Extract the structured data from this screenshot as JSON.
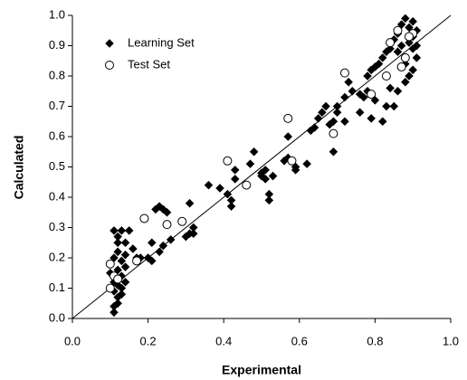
{
  "chart_data": {
    "type": "scatter",
    "xlabel": "Experimental",
    "ylabel": "Calculated",
    "xlim": [
      0,
      1
    ],
    "ylim": [
      0,
      1
    ],
    "xticks": [
      {
        "value": 0,
        "label": "0.0"
      },
      {
        "value": 0.2,
        "label": "0.2"
      },
      {
        "value": 0.4,
        "label": "0.4"
      },
      {
        "value": 0.6,
        "label": "0.6"
      },
      {
        "value": 0.8,
        "label": "0.8"
      },
      {
        "value": 1,
        "label": "1.0"
      }
    ],
    "yticks": [
      {
        "value": 0,
        "label": "0.0"
      },
      {
        "value": 0.1,
        "label": "0.1"
      },
      {
        "value": 0.2,
        "label": "0.2"
      },
      {
        "value": 0.3,
        "label": "0.3"
      },
      {
        "value": 0.4,
        "label": "0.4"
      },
      {
        "value": 0.5,
        "label": "0.5"
      },
      {
        "value": 0.6,
        "label": "0.6"
      },
      {
        "value": 0.7,
        "label": "0.7"
      },
      {
        "value": 0.8,
        "label": "0.8"
      },
      {
        "value": 0.9,
        "label": "0.9"
      },
      {
        "value": 1,
        "label": "1.0"
      }
    ],
    "reference_line": "identity",
    "legend": "upper left",
    "series": [
      {
        "name": "Learning Set",
        "color": "#000000",
        "marker": "diamond",
        "filled": true,
        "x": [
          0.11,
          0.11,
          0.12,
          0.12,
          0.13,
          0.11,
          0.13,
          0.12,
          0.14,
          0.11,
          0.13,
          0.12,
          0.14,
          0.13,
          0.11,
          0.12,
          0.14,
          0.12,
          0.11,
          0.13,
          0.15,
          0.12,
          0.14,
          0.1,
          0.16,
          0.17,
          0.18,
          0.2,
          0.21,
          0.21,
          0.22,
          0.23,
          0.24,
          0.23,
          0.24,
          0.26,
          0.25,
          0.31,
          0.31,
          0.32,
          0.3,
          0.32,
          0.36,
          0.39,
          0.41,
          0.42,
          0.42,
          0.43,
          0.43,
          0.47,
          0.48,
          0.5,
          0.5,
          0.51,
          0.51,
          0.53,
          0.52,
          0.52,
          0.56,
          0.57,
          0.57,
          0.59,
          0.59,
          0.62,
          0.63,
          0.64,
          0.65,
          0.66,
          0.67,
          0.68,
          0.69,
          0.69,
          0.7,
          0.7,
          0.72,
          0.72,
          0.73,
          0.74,
          0.76,
          0.76,
          0.77,
          0.78,
          0.78,
          0.79,
          0.79,
          0.8,
          0.8,
          0.81,
          0.82,
          0.82,
          0.83,
          0.83,
          0.84,
          0.84,
          0.85,
          0.85,
          0.86,
          0.86,
          0.87,
          0.87,
          0.88,
          0.88,
          0.89,
          0.89,
          0.89,
          0.9,
          0.9,
          0.9,
          0.91,
          0.91,
          0.86,
          0.88,
          0.9,
          0.91
        ],
        "values": [
          0.02,
          0.04,
          0.05,
          0.07,
          0.08,
          0.09,
          0.1,
          0.11,
          0.12,
          0.12,
          0.14,
          0.16,
          0.17,
          0.19,
          0.2,
          0.22,
          0.25,
          0.27,
          0.29,
          0.29,
          0.29,
          0.25,
          0.21,
          0.15,
          0.23,
          0.2,
          0.2,
          0.2,
          0.19,
          0.25,
          0.36,
          0.37,
          0.36,
          0.22,
          0.24,
          0.26,
          0.35,
          0.38,
          0.28,
          0.3,
          0.27,
          0.28,
          0.44,
          0.43,
          0.41,
          0.37,
          0.39,
          0.46,
          0.49,
          0.51,
          0.55,
          0.47,
          0.48,
          0.49,
          0.46,
          0.47,
          0.41,
          0.39,
          0.52,
          0.53,
          0.6,
          0.49,
          0.5,
          0.51,
          0.62,
          0.63,
          0.66,
          0.68,
          0.7,
          0.64,
          0.65,
          0.55,
          0.68,
          0.7,
          0.65,
          0.73,
          0.78,
          0.75,
          0.68,
          0.74,
          0.73,
          0.75,
          0.8,
          0.82,
          0.66,
          0.72,
          0.83,
          0.84,
          0.86,
          0.65,
          0.7,
          0.88,
          0.89,
          0.76,
          0.7,
          0.92,
          0.88,
          0.94,
          0.9,
          0.97,
          0.99,
          0.84,
          0.96,
          0.91,
          0.8,
          0.98,
          0.93,
          0.89,
          0.95,
          0.86,
          0.75,
          0.78,
          0.82,
          0.9
        ]
      },
      {
        "name": "Test Set",
        "color": "#000000",
        "marker": "circle",
        "filled": false,
        "x": [
          0.1,
          0.1,
          0.11,
          0.12,
          0.17,
          0.19,
          0.25,
          0.29,
          0.41,
          0.46,
          0.57,
          0.58,
          0.69,
          0.72,
          0.79,
          0.83,
          0.84,
          0.87,
          0.86,
          0.88,
          0.9,
          0.89
        ],
        "values": [
          0.18,
          0.1,
          0.14,
          0.13,
          0.19,
          0.33,
          0.31,
          0.32,
          0.52,
          0.44,
          0.66,
          0.52,
          0.61,
          0.81,
          0.74,
          0.8,
          0.91,
          0.83,
          0.95,
          0.86,
          0.94,
          0.93
        ]
      }
    ]
  }
}
